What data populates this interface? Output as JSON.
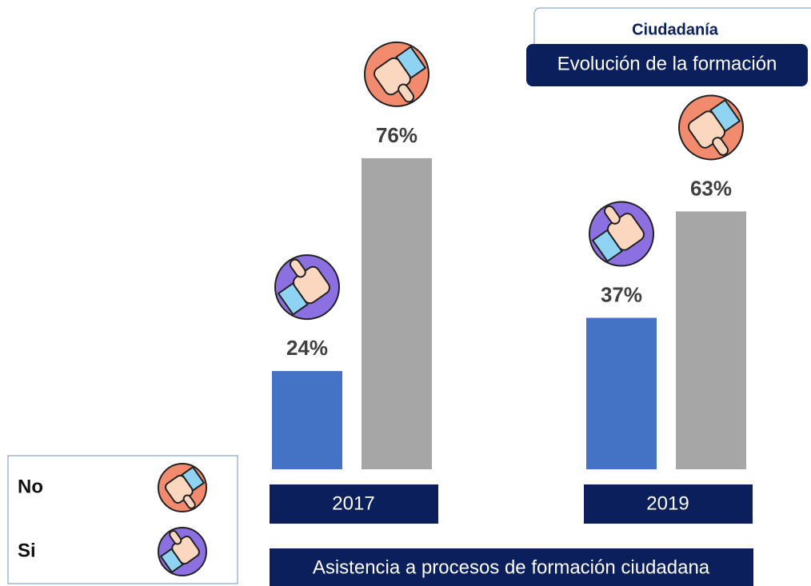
{
  "chart_data": {
    "type": "bar",
    "header": "Ciudadanía",
    "title": "Evolución de la formación",
    "x_label": "Asistencia a procesos de formación ciudadana",
    "categories": [
      "2017",
      "2019"
    ],
    "series": [
      {
        "name": "Si",
        "color": "#4472c4",
        "values": [
          24,
          37
        ],
        "value_labels": [
          "24%",
          "37%"
        ]
      },
      {
        "name": "No",
        "color": "#a6a6a6",
        "values": [
          76,
          63
        ],
        "value_labels": [
          "76%",
          "63%"
        ]
      }
    ]
  }
}
